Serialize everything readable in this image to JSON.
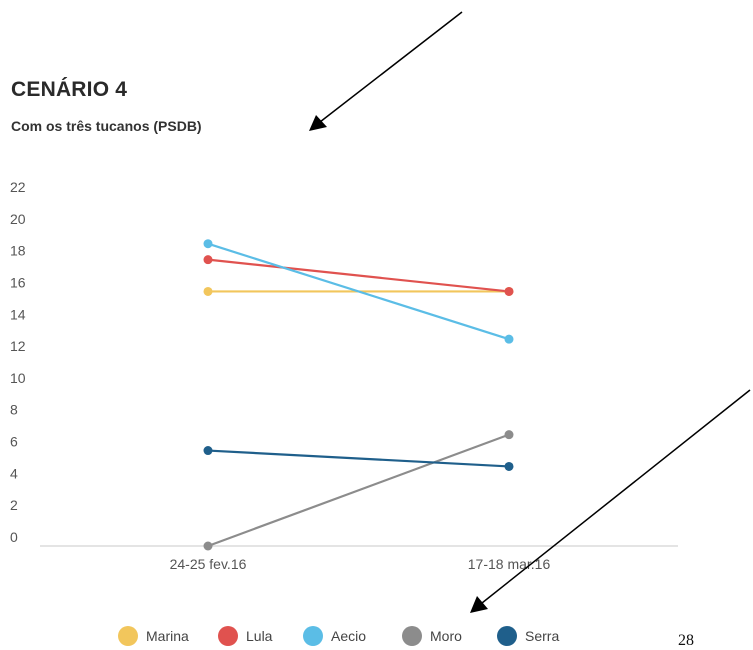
{
  "chart_data": {
    "type": "line",
    "title": "CENÁRIO 4",
    "subtitle": "Com os três tucanos (PSDB)",
    "x": [
      "24-25 fev.16",
      "17-18 mar.16"
    ],
    "ylim": [
      0,
      22
    ],
    "yticks": [
      0,
      2,
      4,
      6,
      8,
      10,
      12,
      14,
      16,
      18,
      20,
      22
    ],
    "grid": false,
    "legend_position": "bottom",
    "series": [
      {
        "name": "Marina",
        "values": [
          16,
          16
        ],
        "color": "#f2c65c"
      },
      {
        "name": "Lula",
        "values": [
          18,
          16
        ],
        "color": "#e0524f"
      },
      {
        "name": "Aecio",
        "values": [
          19,
          13
        ],
        "color": "#5bbde6"
      },
      {
        "name": "Moro",
        "values": [
          0,
          7
        ],
        "color": "#8c8c8c"
      },
      {
        "name": "Serra",
        "values": [
          6,
          5
        ],
        "color": "#1f5f8b"
      }
    ]
  },
  "annotations": {
    "arrow_color": "#000000",
    "page_number": "28"
  }
}
